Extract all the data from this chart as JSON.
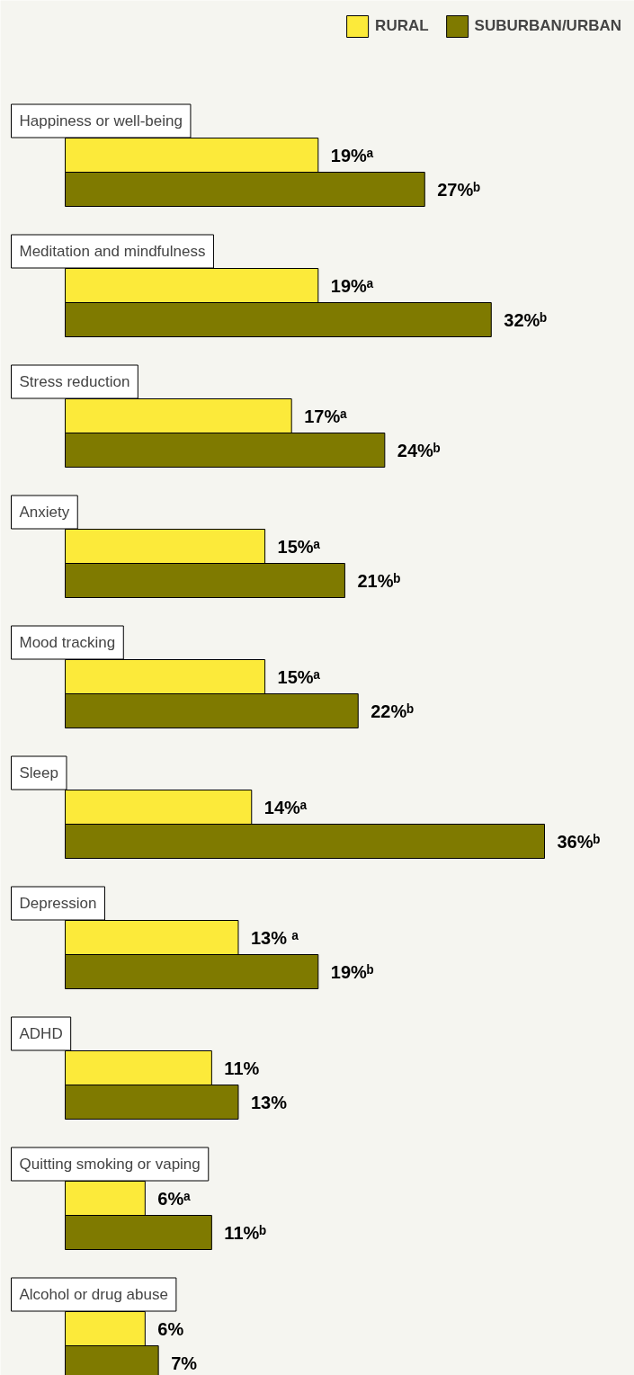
{
  "chart_data": {
    "type": "bar",
    "orientation": "horizontal",
    "legend": "top right",
    "categories": [
      "Happiness or well-being",
      "Meditation and mindfulness",
      "Stress reduction",
      "Anxiety",
      "Mood tracking",
      "Sleep",
      "Depression",
      "ADHD",
      "Quitting smoking or vaping",
      "Alcohol or drug abuse"
    ],
    "series": [
      {
        "name": "RURAL",
        "color": "#fcea3a",
        "values": [
          19,
          19,
          17,
          15,
          15,
          14,
          13,
          11,
          6,
          6
        ],
        "value_labels": [
          "19%ᵃ",
          "19%ᵃ",
          "17%ᵃ",
          "15%ᵃ",
          "15%ᵃ",
          "14%ᵃ",
          "13% ᵃ",
          "11%",
          "6%ᵃ",
          "6%"
        ]
      },
      {
        "name": "SUBURBAN/URBAN",
        "color": "#7f7a00",
        "values": [
          27,
          32,
          24,
          21,
          22,
          36,
          19,
          13,
          11,
          7
        ],
        "value_labels": [
          "27%ᵇ",
          "32%ᵇ",
          "24%ᵇ",
          "21%ᵇ",
          "22%ᵇ",
          "36%ᵇ",
          "19%ᵇ",
          "13%",
          "11%ᵇ",
          "7%"
        ]
      }
    ]
  }
}
